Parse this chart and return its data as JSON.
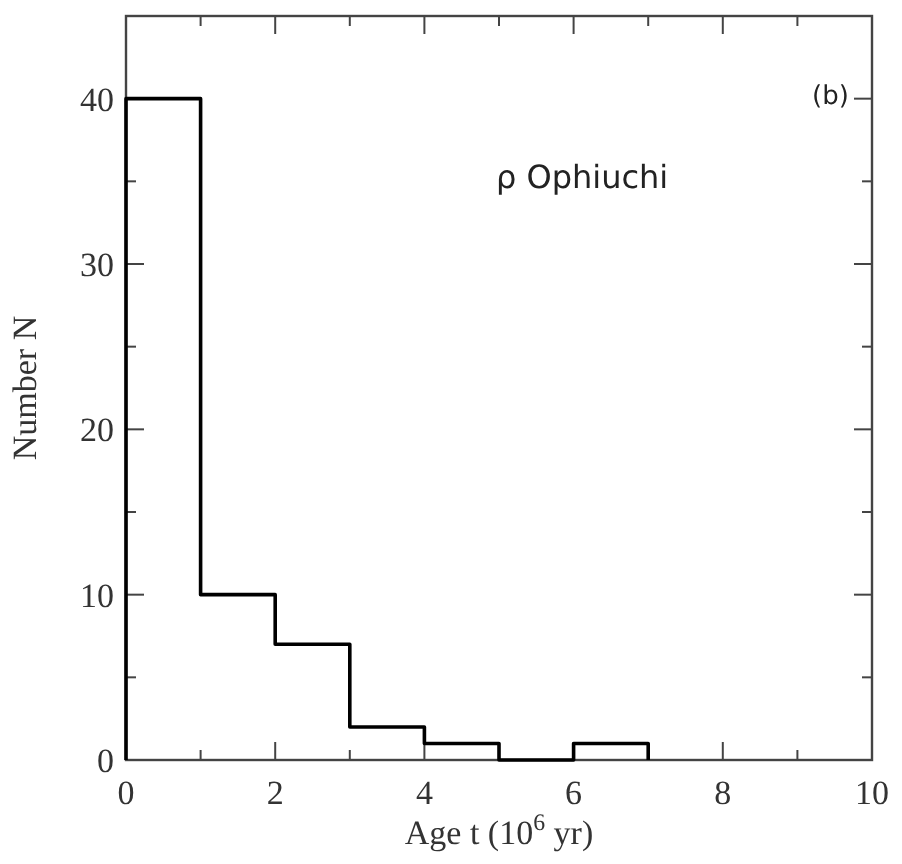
{
  "chart_data": {
    "type": "histogram",
    "xlabel": "Age t (10$^{6}$ yr)",
    "ylabel": "Number N",
    "annotations": [
      "(b)",
      "ρ Ophiuchi"
    ],
    "bins": [
      0,
      1,
      2,
      3,
      4,
      5,
      6,
      7
    ],
    "values": [
      40,
      10,
      7,
      2,
      1,
      0,
      1
    ],
    "color": "#000000",
    "xlim": [
      0,
      10
    ],
    "xticks": [
      0,
      {
        "value": 1,
        "label": null
      },
      2,
      {
        "value": 3,
        "label": null
      },
      4,
      {
        "value": 5,
        "label": null
      },
      6,
      {
        "value": 7,
        "label": null
      },
      8,
      {
        "value": 9,
        "label": null
      },
      10
    ],
    "ylim": [
      0,
      45
    ],
    "yticks": [
      0,
      {
        "value": 5,
        "label": null
      },
      10,
      {
        "value": 15,
        "label": null
      },
      20,
      {
        "value": 25,
        "label": null
      },
      30,
      {
        "value": 35,
        "label": null
      },
      40
    ],
    "grid": false
  }
}
